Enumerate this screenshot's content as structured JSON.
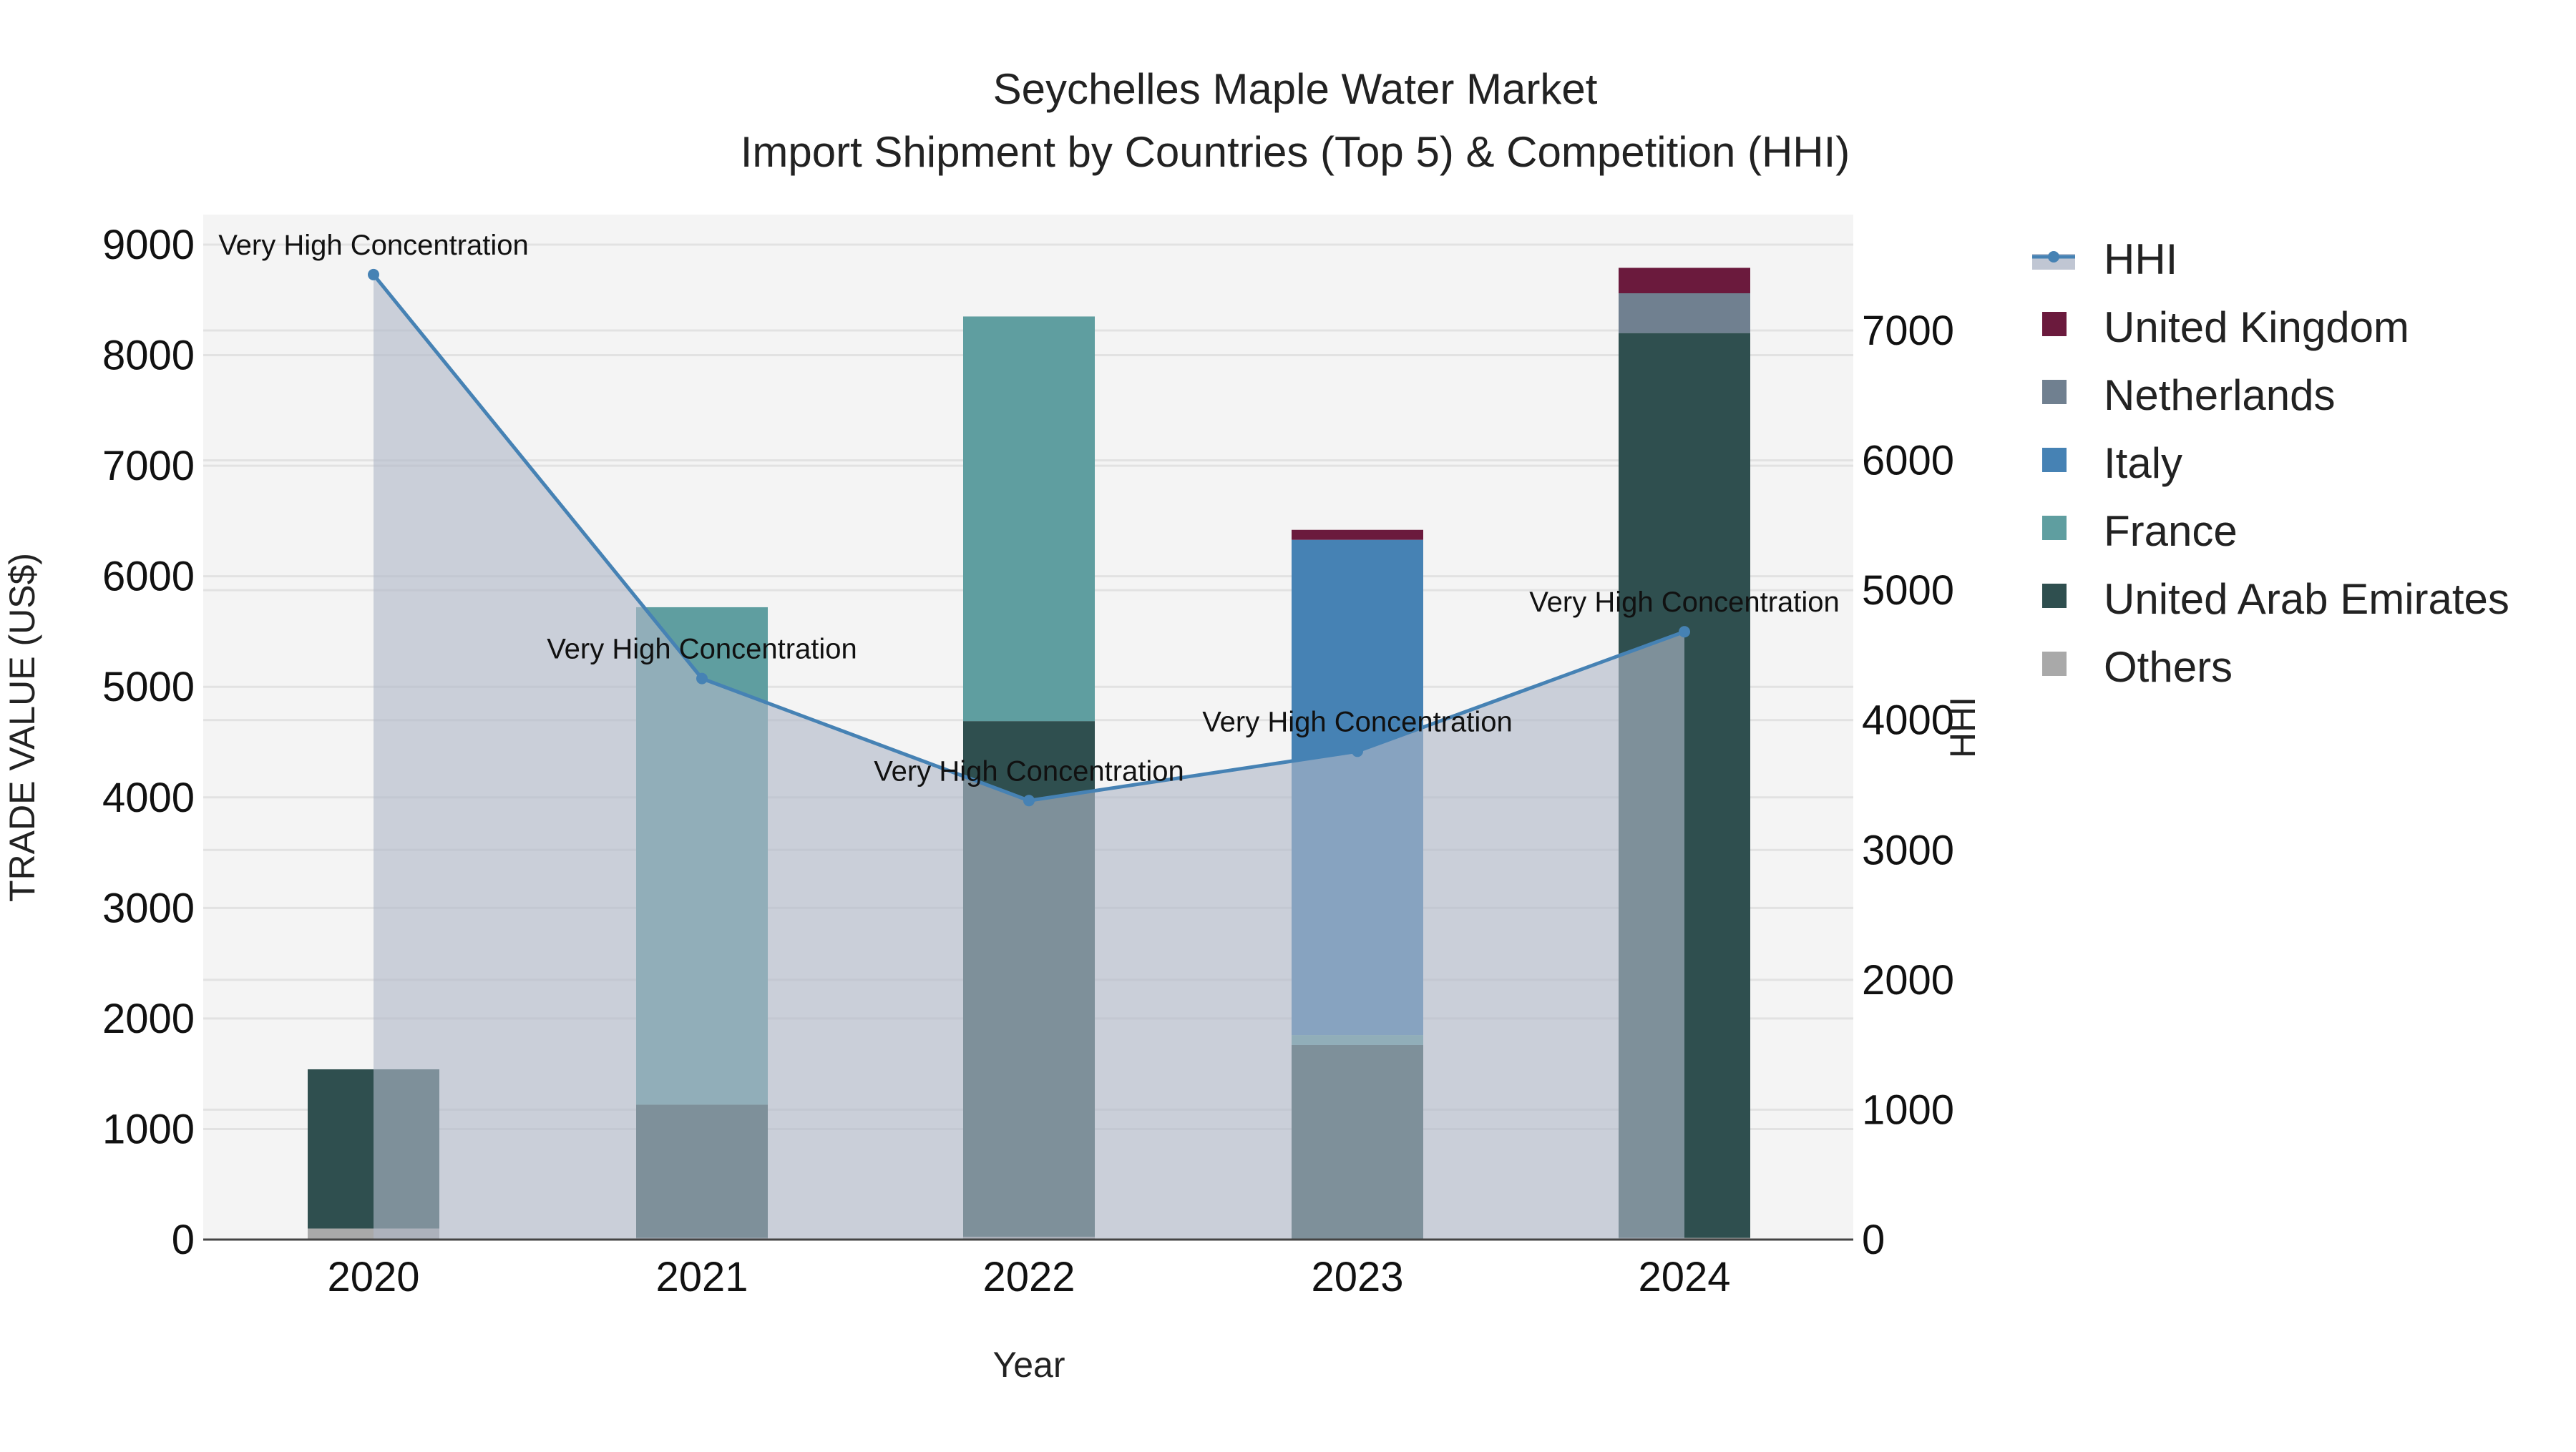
{
  "chart_data": {
    "type": "bar",
    "title": "Seychelles Maple Water Market",
    "subtitle": "Import Shipment by Countries (Top 5) & Competition (HHI)",
    "xlabel": "Year",
    "ylabel": "TRADE VALUE (US$)",
    "y2label": "HHI",
    "ylim": [
      0,
      9000
    ],
    "y2lim": [
      0,
      7900
    ],
    "yticks": [
      0,
      1000,
      2000,
      3000,
      4000,
      5000,
      6000,
      7000,
      8000,
      9000
    ],
    "y2ticks": [
      0,
      1000,
      2000,
      3000,
      4000,
      5000,
      6000,
      7000
    ],
    "categories": [
      "2020",
      "2021",
      "2022",
      "2023",
      "2024"
    ],
    "series": [
      {
        "name": "Others",
        "color": "#a9a9a9",
        "values": [
          100,
          15,
          25,
          5,
          15
        ]
      },
      {
        "name": "United Arab Emirates",
        "color": "#2f4f4f",
        "values": [
          1440,
          1205,
          4665,
          1755,
          8185
        ]
      },
      {
        "name": "France",
        "color": "#5f9ea0",
        "values": [
          0,
          4500,
          3660,
          90,
          0
        ]
      },
      {
        "name": "Italy",
        "color": "#4682b4",
        "values": [
          0,
          0,
          0,
          4480,
          0
        ]
      },
      {
        "name": "Netherlands",
        "color": "#708090",
        "values": [
          0,
          0,
          0,
          0,
          360
        ]
      },
      {
        "name": "United Kingdom",
        "color": "#6b1a3d",
        "values": [
          0,
          0,
          0,
          90,
          230
        ]
      }
    ],
    "hhi": {
      "name": "HHI",
      "color": "#4682b4",
      "values": [
        7430,
        4320,
        3380,
        3760,
        4680
      ]
    },
    "annotations": [
      "Very High Concentration",
      "Very High Concentration",
      "Very High Concentration",
      "Very High Concentration",
      "Very High Concentration"
    ],
    "legend_order": [
      "HHI",
      "United Kingdom",
      "Netherlands",
      "Italy",
      "France",
      "United Arab Emirates",
      "Others"
    ],
    "legend_position": "right",
    "grid": true
  }
}
